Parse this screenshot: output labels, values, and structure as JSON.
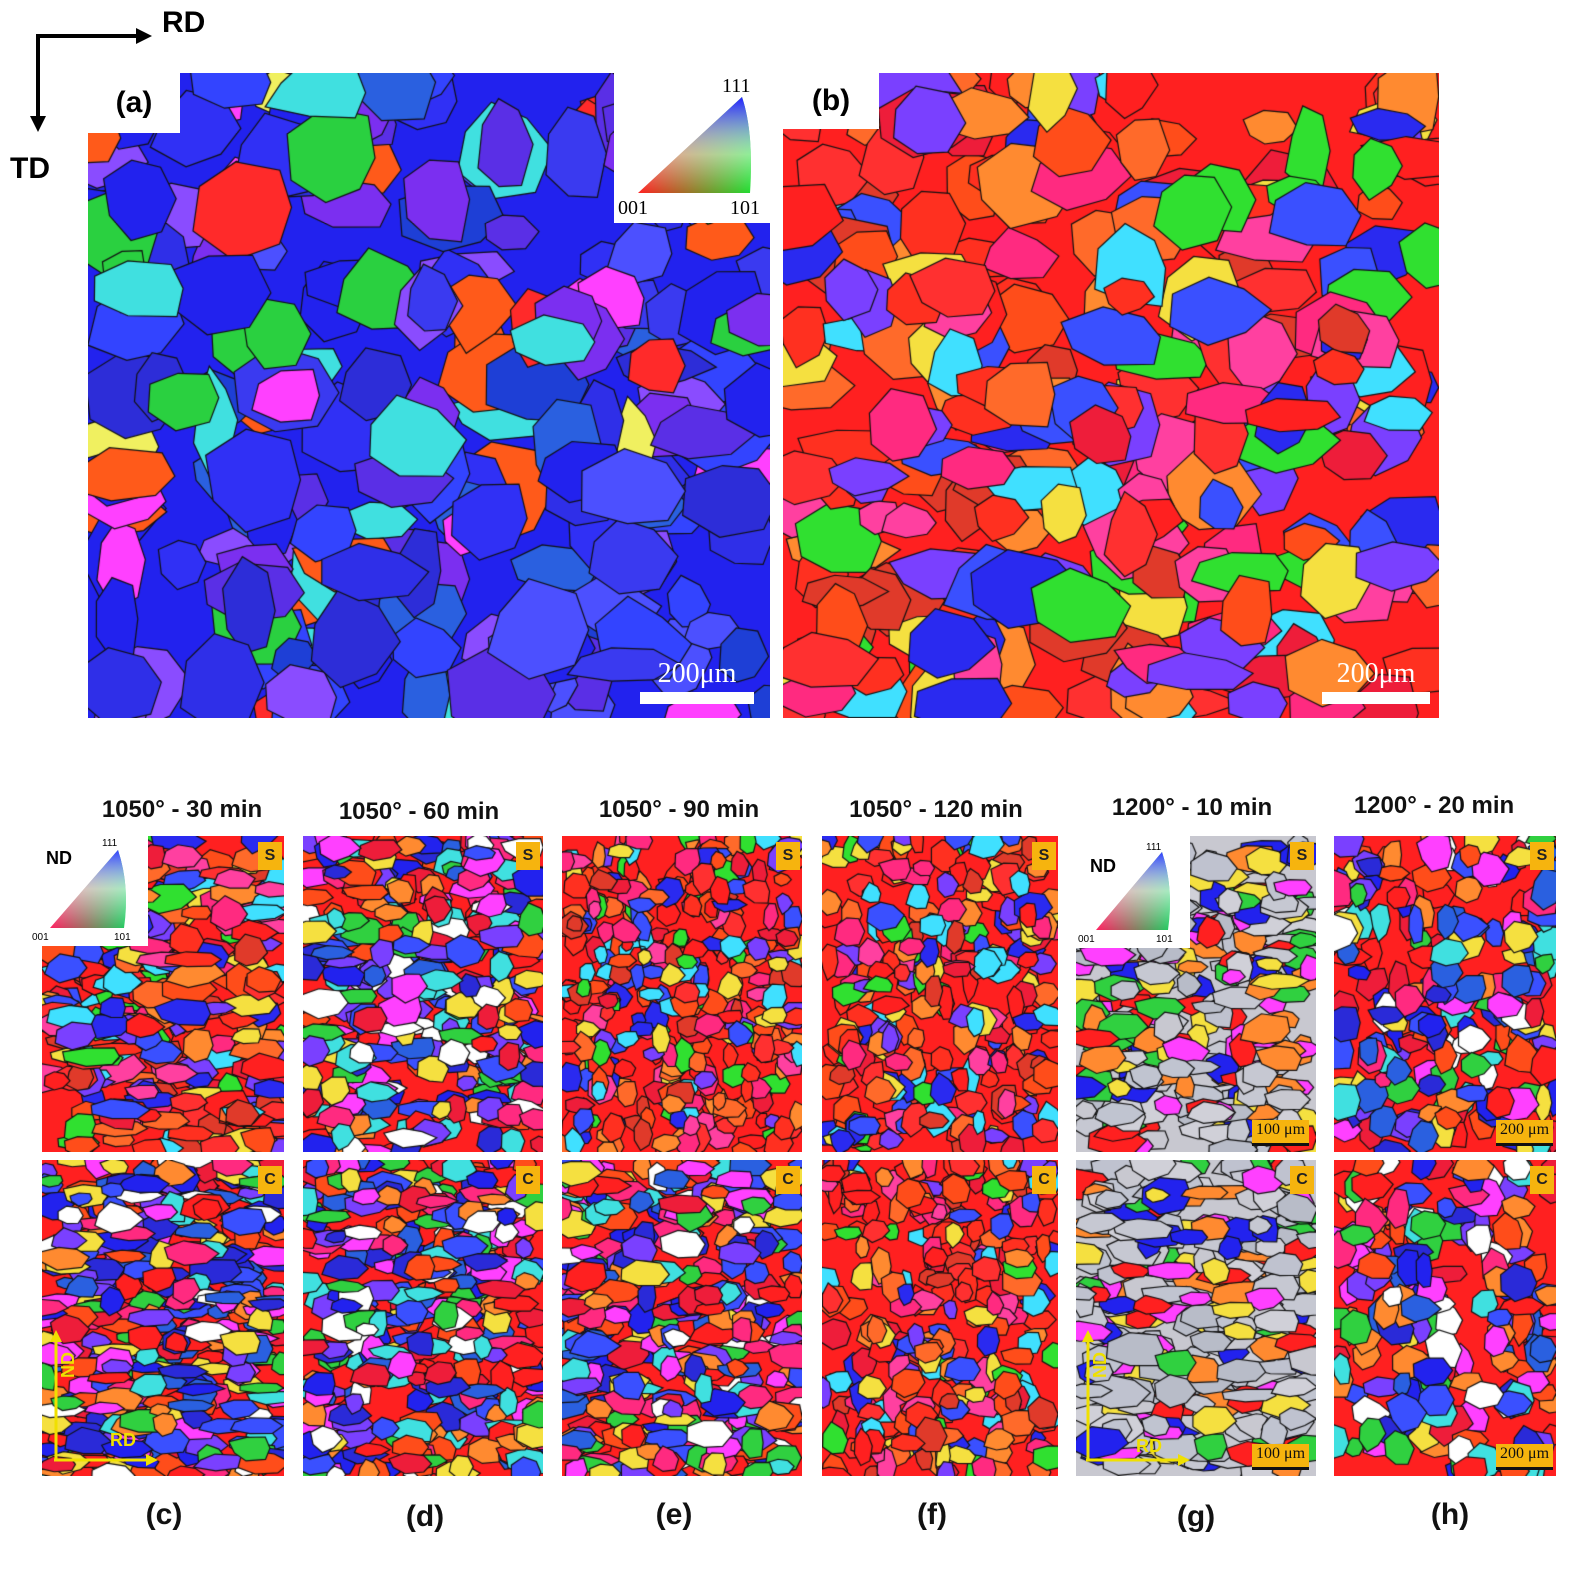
{
  "axes": {
    "rd": "RD",
    "td": "TD"
  },
  "top_panels": [
    {
      "label": "(a)",
      "scale": "200μm",
      "dominant": "blue",
      "inverse_pole": {
        "top": "111",
        "left": "001",
        "right": "101"
      }
    },
    {
      "label": "(b)",
      "scale": "200μm",
      "dominant": "red"
    }
  ],
  "columns": [
    {
      "title": "1050° - 30 min",
      "label": "(c)",
      "s_badge": "S",
      "c_badge": "C",
      "legend": {
        "nd": "ND",
        "top": "111",
        "left": "001",
        "right": "101"
      },
      "axes_overlay": {
        "nd": "ND",
        "rd": "RD"
      }
    },
    {
      "title": "1050° - 60 min",
      "label": "(d)",
      "s_badge": "S",
      "c_badge": "C"
    },
    {
      "title": "1050° - 90 min",
      "label": "(e)",
      "s_badge": "S",
      "c_badge": "C"
    },
    {
      "title": "1050° - 120 min",
      "label": "(f)",
      "s_badge": "S",
      "c_badge": "C"
    },
    {
      "title": "1200° - 10 min",
      "label": "(g)",
      "s_badge": "S",
      "c_badge": "C",
      "legend": {
        "nd": "ND",
        "top": "111",
        "left": "001",
        "right": "101"
      },
      "scale_s": "100 μm",
      "scale_c": "100 μm",
      "axes_overlay": {
        "nd": "ND",
        "rd": "RD"
      }
    },
    {
      "title": "1200° - 20 min",
      "label": "(h)",
      "s_badge": "S",
      "c_badge": "C",
      "scale_s": "200 μm",
      "scale_c": "200 μm"
    }
  ]
}
